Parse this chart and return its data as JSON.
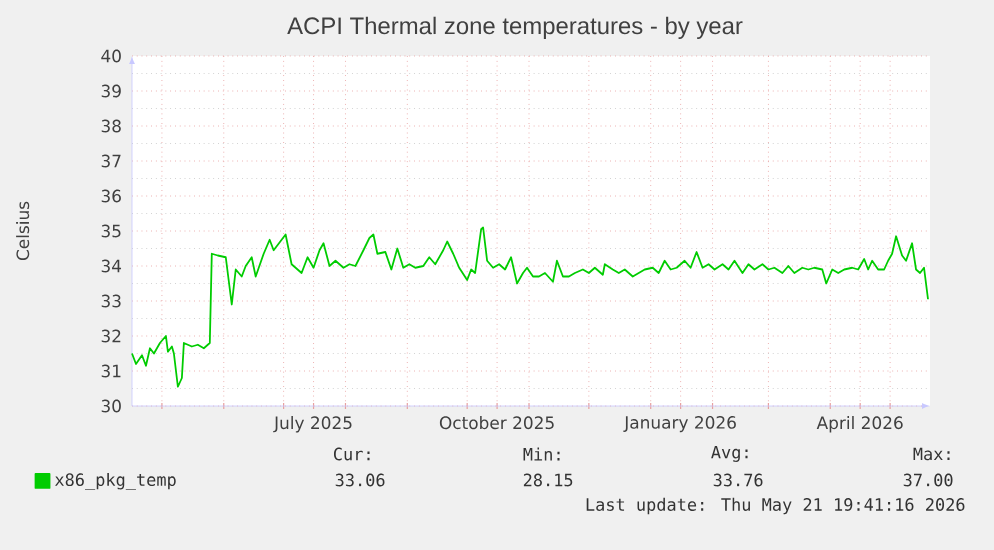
{
  "chart_data": {
    "type": "line",
    "title": "ACPI Thermal zone temperatures - by year",
    "ylabel": "Celsius",
    "x": [
      "2025-04-16",
      "2025-04-18",
      "2025-04-21",
      "2025-04-23",
      "2025-04-25",
      "2025-04-27",
      "2025-04-30",
      "2025-05-03",
      "2025-05-04",
      "2025-05-06",
      "2025-05-07",
      "2025-05-09",
      "2025-05-11",
      "2025-05-12",
      "2025-05-16",
      "2025-05-19",
      "2025-05-22",
      "2025-05-25",
      "2025-05-26",
      "2025-05-29",
      "2025-06-02",
      "2025-06-05",
      "2025-06-07",
      "2025-06-10",
      "2025-06-12",
      "2025-06-15",
      "2025-06-17",
      "2025-06-21",
      "2025-06-24",
      "2025-06-26",
      "2025-06-30",
      "2025-07-02",
      "2025-07-05",
      "2025-07-07",
      "2025-07-10",
      "2025-07-13",
      "2025-07-16",
      "2025-07-19",
      "2025-07-21",
      "2025-07-24",
      "2025-07-27",
      "2025-07-31",
      "2025-08-03",
      "2025-08-06",
      "2025-08-10",
      "2025-08-13",
      "2025-08-15",
      "2025-08-17",
      "2025-08-21",
      "2025-08-24",
      "2025-08-27",
      "2025-08-30",
      "2025-09-02",
      "2025-09-05",
      "2025-09-09",
      "2025-09-12",
      "2025-09-15",
      "2025-09-19",
      "2025-09-21",
      "2025-09-24",
      "2025-09-27",
      "2025-10-01",
      "2025-10-03",
      "2025-10-05",
      "2025-10-08",
      "2025-10-09",
      "2025-10-11",
      "2025-10-14",
      "2025-10-17",
      "2025-10-20",
      "2025-10-23",
      "2025-10-26",
      "2025-10-29",
      "2025-10-31",
      "2025-11-03",
      "2025-11-06",
      "2025-11-09",
      "2025-11-13",
      "2025-11-15",
      "2025-11-18",
      "2025-11-21",
      "2025-11-24",
      "2025-11-28",
      "2025-12-01",
      "2025-12-04",
      "2025-12-08",
      "2025-12-09",
      "2025-12-13",
      "2025-12-16",
      "2025-12-19",
      "2025-12-23",
      "2025-12-26",
      "2025-12-29",
      "2026-01-02",
      "2026-01-05",
      "2026-01-08",
      "2026-01-11",
      "2026-01-14",
      "2026-01-18",
      "2026-01-21",
      "2026-01-24",
      "2026-01-27",
      "2026-01-30",
      "2026-02-02",
      "2026-02-06",
      "2026-02-09",
      "2026-02-12",
      "2026-02-16",
      "2026-02-19",
      "2026-02-22",
      "2026-02-26",
      "2026-03-01",
      "2026-03-04",
      "2026-03-08",
      "2026-03-11",
      "2026-03-14",
      "2026-03-18",
      "2026-03-21",
      "2026-03-24",
      "2026-03-28",
      "2026-03-30",
      "2026-04-02",
      "2026-04-05",
      "2026-04-08",
      "2026-04-12",
      "2026-04-15",
      "2026-04-18",
      "2026-04-20",
      "2026-04-22",
      "2026-04-25",
      "2026-04-28",
      "2026-04-30",
      "2026-05-02",
      "2026-05-04",
      "2026-05-07",
      "2026-05-09",
      "2026-05-12",
      "2026-05-14",
      "2026-05-16",
      "2026-05-18",
      "2026-05-20"
    ],
    "series": [
      {
        "name": "x86_pkg_temp",
        "color": "#00cc00",
        "values": [
          31.5,
          31.2,
          31.45,
          31.15,
          31.65,
          31.5,
          31.8,
          32.0,
          31.55,
          31.7,
          31.5,
          30.55,
          30.8,
          31.8,
          31.7,
          31.75,
          31.65,
          31.8,
          34.35,
          34.3,
          34.25,
          32.9,
          33.9,
          33.7,
          34.0,
          34.25,
          33.7,
          34.35,
          34.75,
          34.45,
          34.75,
          34.9,
          34.05,
          33.95,
          33.8,
          34.25,
          33.95,
          34.45,
          34.65,
          34.0,
          34.15,
          33.95,
          34.05,
          34.0,
          34.45,
          34.8,
          34.9,
          34.35,
          34.4,
          33.9,
          34.5,
          33.95,
          34.05,
          33.95,
          34.0,
          34.25,
          34.05,
          34.45,
          34.7,
          34.35,
          33.95,
          33.6,
          33.9,
          33.8,
          35.05,
          35.1,
          34.15,
          33.95,
          34.05,
          33.9,
          34.25,
          33.5,
          33.8,
          33.95,
          33.7,
          33.7,
          33.8,
          33.55,
          34.15,
          33.7,
          33.7,
          33.8,
          33.9,
          33.8,
          33.95,
          33.75,
          34.05,
          33.9,
          33.8,
          33.9,
          33.7,
          33.8,
          33.9,
          33.95,
          33.8,
          34.15,
          33.9,
          33.95,
          34.15,
          33.95,
          34.4,
          33.95,
          34.05,
          33.9,
          34.05,
          33.9,
          34.15,
          33.8,
          34.05,
          33.9,
          34.05,
          33.9,
          33.95,
          33.8,
          34.0,
          33.8,
          33.95,
          33.9,
          33.95,
          33.9,
          33.5,
          33.9,
          33.8,
          33.9,
          33.95,
          33.9,
          34.2,
          33.9,
          34.15,
          33.9,
          33.9,
          34.15,
          34.35,
          34.85,
          34.3,
          34.15,
          34.65,
          33.9,
          33.8,
          33.95,
          33.05
        ]
      }
    ],
    "xlim": [
      "2025-04-16",
      "2026-05-21"
    ],
    "xticks": [
      {
        "value": "2025-05-01",
        "label": null
      },
      {
        "value": "2025-06-01",
        "label": null
      },
      {
        "value": "2025-07-01",
        "label": null
      },
      {
        "value": "2025-07-16",
        "label": "July 2025"
      },
      {
        "value": "2025-08-01",
        "label": null
      },
      {
        "value": "2025-09-01",
        "label": null
      },
      {
        "value": "2025-10-01",
        "label": null
      },
      {
        "value": "2025-10-16",
        "label": "October 2025"
      },
      {
        "value": "2025-11-01",
        "label": null
      },
      {
        "value": "2025-12-01",
        "label": null
      },
      {
        "value": "2026-01-01",
        "label": null
      },
      {
        "value": "2026-01-16",
        "label": "January 2026"
      },
      {
        "value": "2026-02-01",
        "label": null
      },
      {
        "value": "2026-03-01",
        "label": null
      },
      {
        "value": "2026-04-01",
        "label": null
      },
      {
        "value": "2026-04-16",
        "label": "April 2026"
      },
      {
        "value": "2026-05-01",
        "label": null
      }
    ],
    "ylim": [
      30,
      40
    ],
    "yticks": [
      30,
      31,
      32,
      33,
      34,
      35,
      36,
      37,
      38,
      39,
      40
    ],
    "grid": true,
    "legend": "bottom left",
    "annotations": [
      "Cur:",
      "Min:",
      "Avg:",
      "Max:",
      "33.06",
      "28.15",
      "33.76",
      "37.00",
      "Last update: Thu May 21 19:41:16 2026"
    ]
  }
}
